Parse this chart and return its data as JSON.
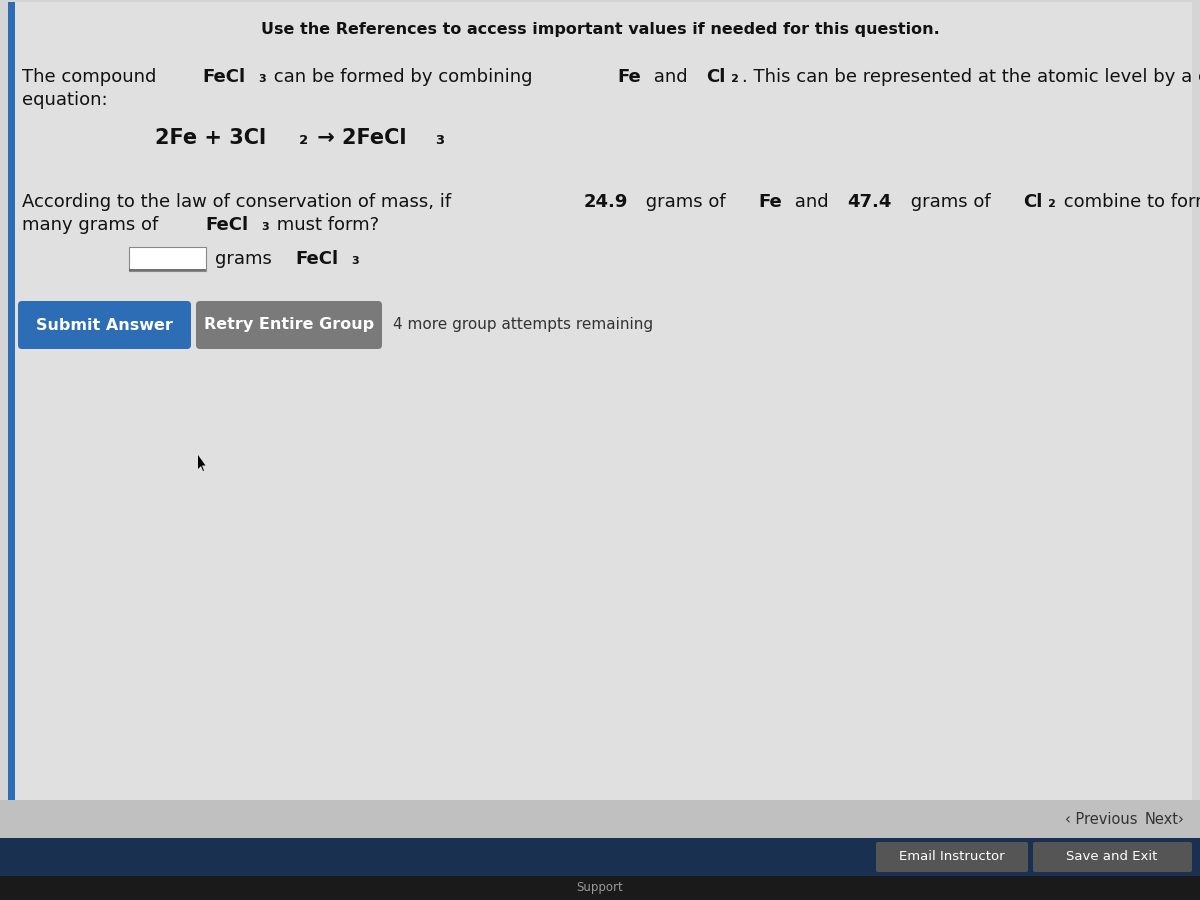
{
  "bg_color": "#d5d5d5",
  "content_bg": "#e2e2e2",
  "header_text": "Use the References to access important values if needed for this question.",
  "btn1_text": "Submit Answer",
  "btn1_color": "#2d6db5",
  "btn2_text": "Retry Entire Group",
  "btn2_color": "#7a7a7a",
  "attempts_text": "4 more group attempts remaining",
  "prev_text": "Previous",
  "next_text": "Next›",
  "email_btn_text": "Email Instructor",
  "save_btn_text": "Save and Exit",
  "left_bar_color": "#2d6db5",
  "nav_bg": "#c0c0c0",
  "footer_bg": "#1a3050",
  "footer_btn_bg": "#555555",
  "bottom_dark": "#1a1a1a",
  "support_text": "Support"
}
